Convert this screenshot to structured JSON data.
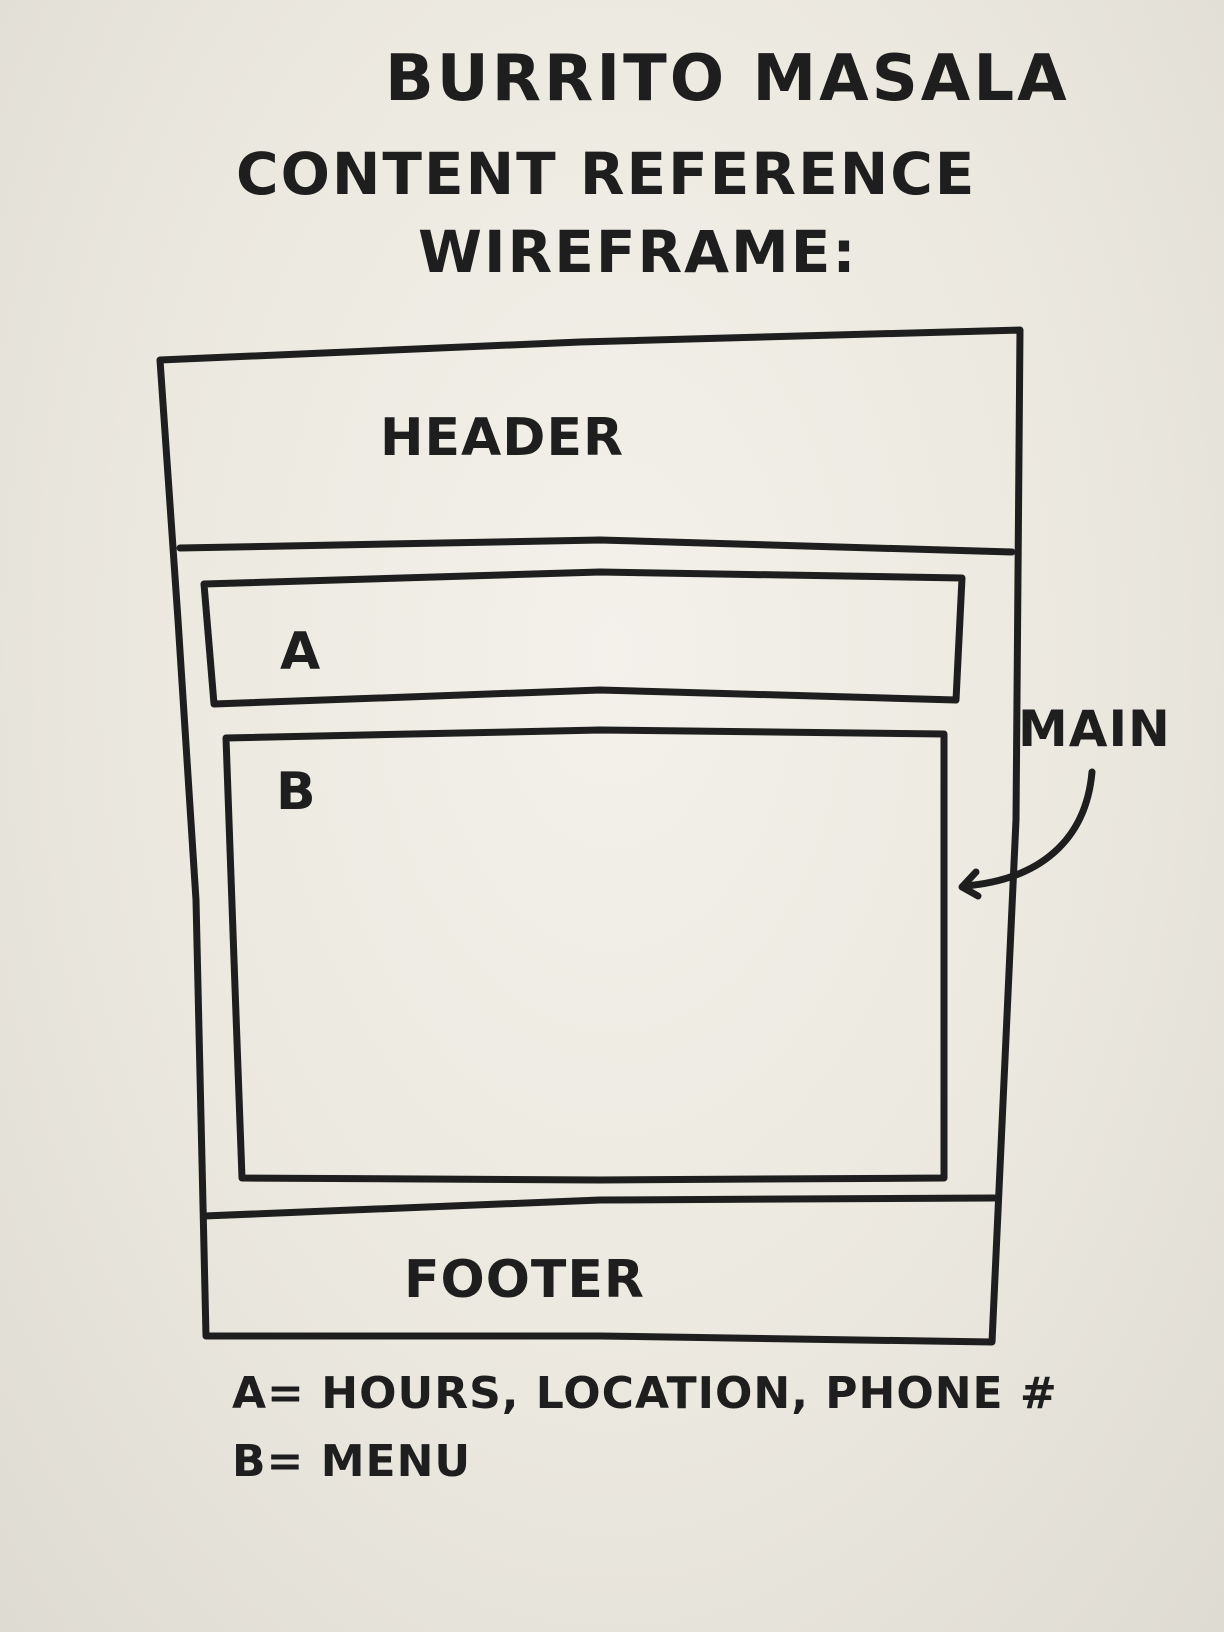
{
  "title": {
    "line1": "BURRITO MASALA",
    "line2": "CONTENT REFERENCE",
    "line3": "WIREFRAME:"
  },
  "regions": {
    "header": "HEADER",
    "a": "A",
    "b": "B",
    "main": "MAIN",
    "footer": "FOOTER"
  },
  "legend": {
    "a": "A= HOURS, LOCATION, PHONE #",
    "b": "B= MENU"
  }
}
